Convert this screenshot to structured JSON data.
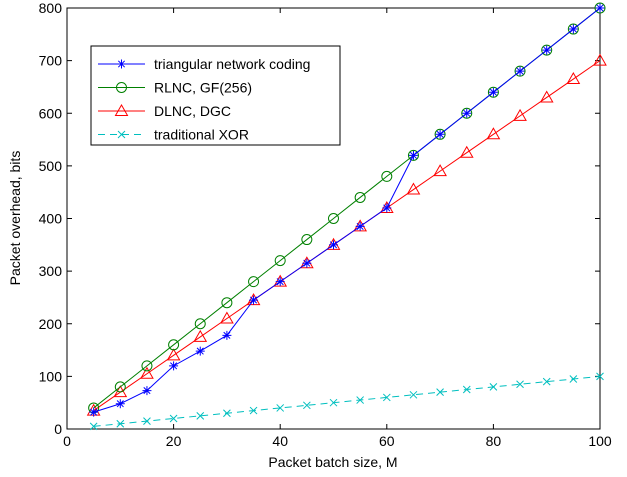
{
  "chart_data": {
    "type": "line",
    "xlabel": "Packet batch size, M",
    "ylabel": "Packet overhead, bits",
    "xlim": [
      0,
      100
    ],
    "ylim": [
      0,
      800
    ],
    "xticks": [
      0,
      20,
      40,
      60,
      80,
      100
    ],
    "yticks": [
      0,
      100,
      200,
      300,
      400,
      500,
      600,
      700,
      800
    ],
    "grid": false,
    "legend_position": "top-left",
    "x": [
      5,
      10,
      15,
      20,
      25,
      30,
      35,
      40,
      45,
      50,
      55,
      60,
      65,
      70,
      75,
      80,
      85,
      90,
      95,
      100
    ],
    "series": [
      {
        "name": "triangular network coding",
        "color": "#0000ff",
        "marker": "star",
        "dash": "solid",
        "values": [
          32,
          48,
          73,
          120,
          148,
          178,
          245,
          280,
          315,
          350,
          385,
          420,
          520,
          560,
          600,
          640,
          680,
          720,
          760,
          800
        ]
      },
      {
        "name": "RLNC, GF(256)",
        "color": "#008000",
        "marker": "circle",
        "dash": "solid",
        "values": [
          40,
          80,
          120,
          160,
          200,
          240,
          280,
          320,
          360,
          400,
          440,
          480,
          520,
          560,
          600,
          640,
          680,
          720,
          760,
          800
        ]
      },
      {
        "name": "DLNC, DGC",
        "color": "#ff0000",
        "marker": "triangle",
        "dash": "solid",
        "values": [
          35,
          70,
          105,
          140,
          175,
          210,
          245,
          280,
          315,
          350,
          385,
          420,
          455,
          490,
          525,
          560,
          595,
          630,
          665,
          700
        ]
      },
      {
        "name": "traditional XOR",
        "color": "#00bfbf",
        "marker": "x",
        "dash": "dashed",
        "values": [
          5,
          10,
          15,
          20,
          25,
          30,
          35,
          40,
          45,
          50,
          55,
          60,
          65,
          70,
          75,
          80,
          85,
          90,
          95,
          100
        ]
      }
    ]
  }
}
